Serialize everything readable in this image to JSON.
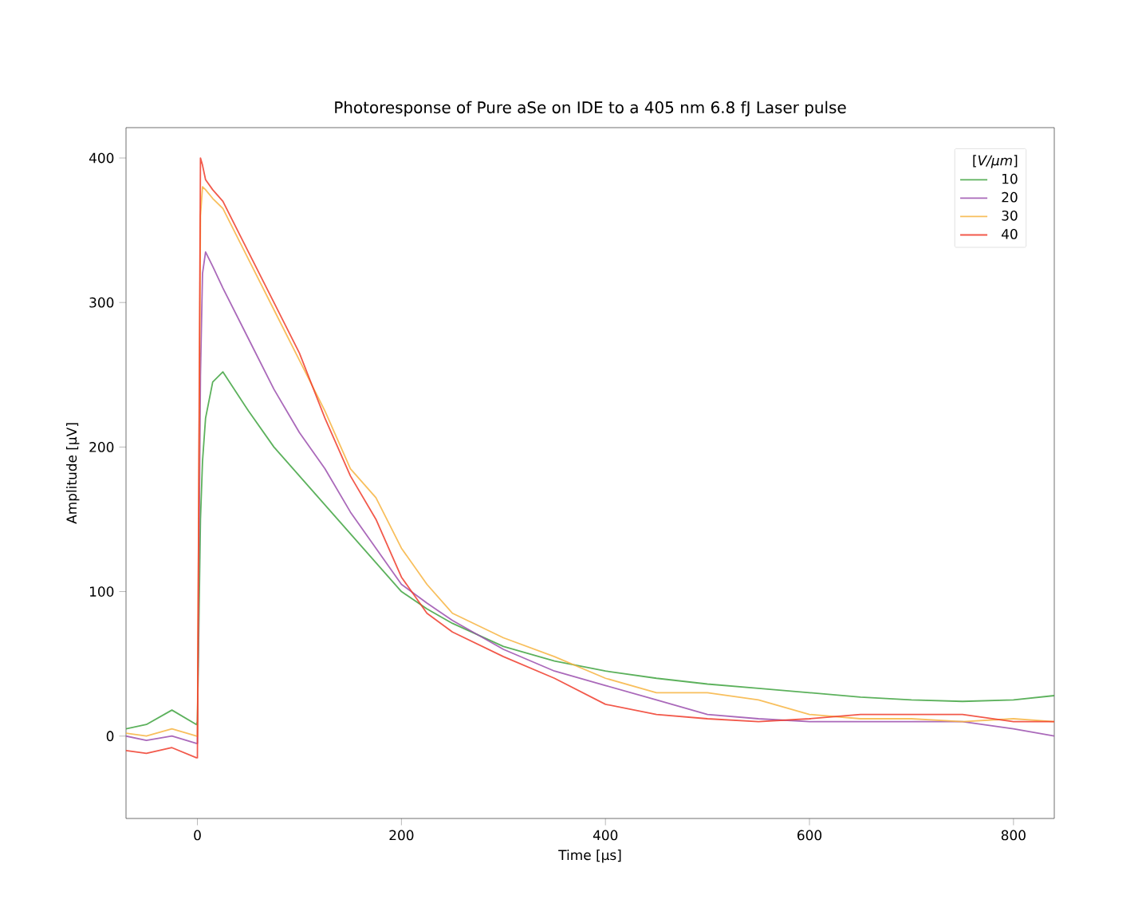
{
  "chart_data": {
    "type": "line",
    "title": "Photoresponse of Pure aSe on IDE to a 405 nm 6.8 fJ Laser pulse",
    "xlabel": "Time [μs]",
    "ylabel": "Amplitude [μV]",
    "legend_title": "[*V/μm*]",
    "legend": "top right",
    "x": [
      -70,
      -50,
      -25,
      -1,
      0,
      3,
      5,
      8,
      15,
      25,
      50,
      75,
      100,
      125,
      150,
      175,
      200,
      225,
      250,
      300,
      350,
      400,
      450,
      500,
      550,
      600,
      650,
      700,
      750,
      800,
      840
    ],
    "series": [
      {
        "name": "10",
        "color": "#3fa33f",
        "values": [
          5,
          8,
          18,
          8,
          10,
          150,
          190,
          220,
          245,
          252,
          225,
          200,
          180,
          160,
          140,
          120,
          100,
          88,
          78,
          62,
          52,
          45,
          40,
          36,
          33,
          30,
          27,
          25,
          24,
          25,
          28
        ]
      },
      {
        "name": "20",
        "color": "#9b4fae",
        "values": [
          0,
          -3,
          0,
          -5,
          -5,
          250,
          320,
          335,
          325,
          310,
          275,
          240,
          210,
          185,
          155,
          130,
          105,
          92,
          80,
          60,
          45,
          35,
          25,
          15,
          12,
          10,
          10,
          10,
          10,
          5,
          0
        ]
      },
      {
        "name": "30",
        "color": "#f7b441",
        "values": [
          2,
          0,
          5,
          0,
          0,
          360,
          380,
          378,
          372,
          365,
          330,
          295,
          260,
          225,
          185,
          165,
          130,
          105,
          85,
          68,
          55,
          40,
          30,
          30,
          25,
          15,
          12,
          12,
          10,
          12,
          10
        ]
      },
      {
        "name": "40",
        "color": "#f03c2c",
        "values": [
          -10,
          -12,
          -8,
          -15,
          -15,
          400,
          395,
          385,
          378,
          370,
          335,
          300,
          265,
          220,
          180,
          150,
          110,
          85,
          72,
          55,
          40,
          22,
          15,
          12,
          10,
          12,
          15,
          15,
          15,
          10,
          10
        ]
      }
    ],
    "xlim": [
      -70,
      840
    ],
    "ylim": [
      -57,
      421
    ],
    "xticks": [
      0,
      200,
      400,
      600,
      800
    ],
    "yticks": [
      0,
      100,
      200,
      300,
      400
    ],
    "line_style": "solid"
  }
}
